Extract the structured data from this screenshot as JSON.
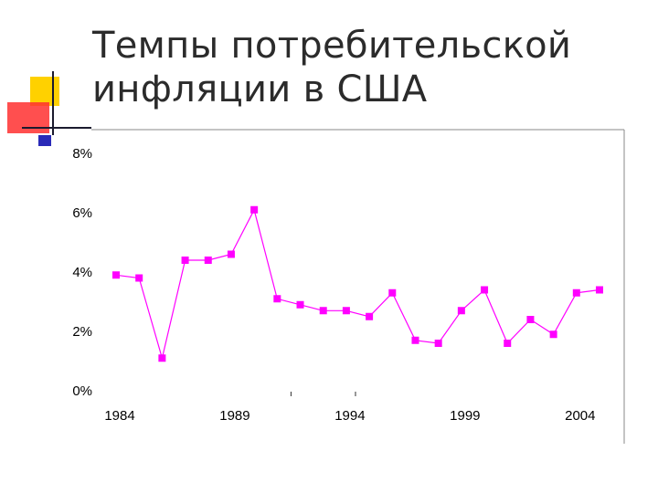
{
  "slide": {
    "title_line1": "Темпы потребительской",
    "title_line2": "инфляции в США"
  },
  "colors": {
    "series": "#ff00ff",
    "accent_yellow": "#ffd100",
    "accent_red": "#ff3030",
    "accent_blue": "#2a2ab8",
    "frame": "#888888",
    "text": "#000000"
  },
  "decor_icon": "squares-cross-decoration",
  "chart_data": {
    "type": "line",
    "title": "",
    "xlabel": "",
    "ylabel": "",
    "x": [
      1984,
      1985,
      1986,
      1987,
      1988,
      1989,
      1990,
      1991,
      1992,
      1993,
      1994,
      1995,
      1996,
      1997,
      1998,
      1999,
      2000,
      2001,
      2002,
      2003,
      2004,
      2005
    ],
    "series": [
      {
        "values": [
          3.9,
          3.8,
          1.1,
          4.4,
          4.4,
          4.6,
          6.1,
          3.1,
          2.9,
          2.7,
          2.7,
          2.5,
          3.3,
          1.7,
          1.6,
          2.7,
          3.4,
          1.6,
          2.4,
          1.9,
          3.3,
          3.4
        ]
      }
    ],
    "ylim": [
      0,
      8
    ],
    "yticks": [
      0,
      2,
      4,
      6,
      8
    ],
    "ytick_labels": [
      "0%",
      "2%",
      "4%",
      "6%",
      "8%"
    ],
    "xticks": [
      1984,
      1989,
      1994,
      1999,
      2004
    ],
    "xtick_labels": [
      "1984",
      "1989",
      "1994",
      "1999",
      "2004"
    ],
    "grid": false,
    "legend": "none",
    "marker": "square"
  }
}
